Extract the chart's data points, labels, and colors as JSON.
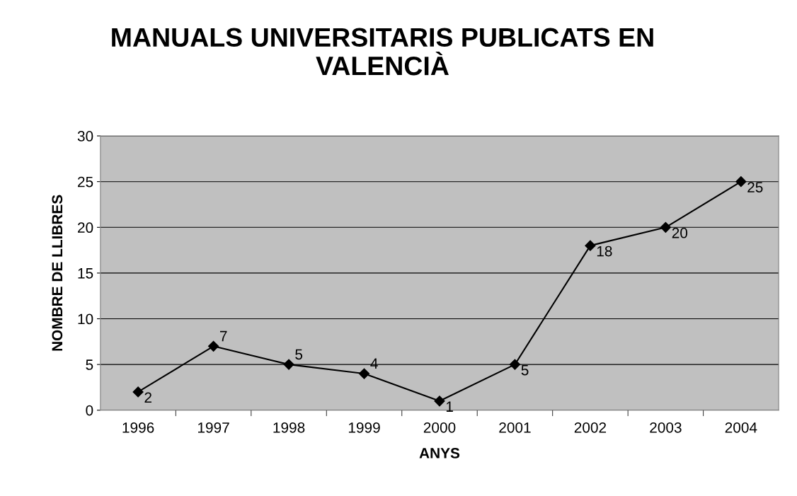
{
  "chart_data": {
    "type": "line",
    "title": "MANUALS UNIVERSITARIS PUBLICATS EN\nVALENCIÀ",
    "xlabel": "ANYS",
    "ylabel": "NOMBRE DE LLIBRES",
    "categories": [
      "1996",
      "1997",
      "1998",
      "1999",
      "2000",
      "2001",
      "2002",
      "2003",
      "2004"
    ],
    "series": [
      {
        "color": "#000000",
        "values": [
          2,
          7,
          5,
          4,
          1,
          5,
          18,
          20,
          25
        ]
      }
    ],
    "ylim": [
      0,
      30
    ],
    "yticks": [
      0,
      5,
      10,
      15,
      20,
      25,
      30
    ],
    "grid": "y",
    "marker": "diamond",
    "line_style": "solid",
    "data_labels": true,
    "legend": false
  }
}
